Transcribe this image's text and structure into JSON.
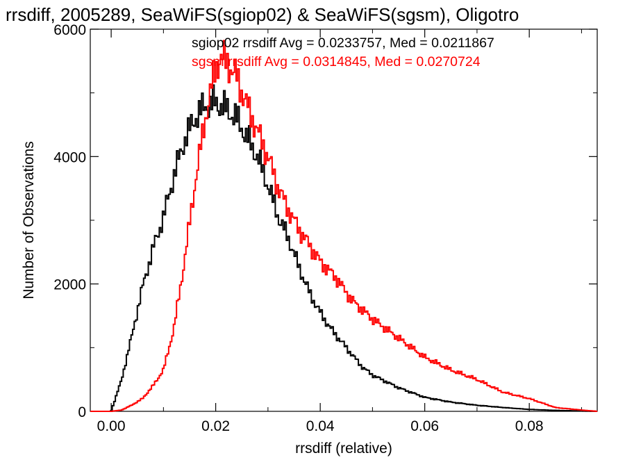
{
  "chart_data": {
    "type": "line",
    "step": true,
    "title": "rrsdiff, 2005289, SeaWiFS(sgiop02) & SeaWiFS(sgsm), Oligotro",
    "xlabel": "rrsdiff (relative)",
    "ylabel": "Number of Observations",
    "xlim": [
      -0.004,
      0.093
    ],
    "ylim": [
      0,
      6000
    ],
    "xticks": [
      0.0,
      0.02,
      0.04,
      0.06,
      0.08
    ],
    "xtick_labels": [
      "0.00",
      "0.02",
      "0.04",
      "0.06",
      "0.08"
    ],
    "yticks": [
      0,
      2000,
      4000,
      6000
    ],
    "ytick_labels": [
      "0",
      "2000",
      "4000",
      "6000"
    ],
    "grid": false,
    "annotations": [
      {
        "text": "sgiop02 rrsdiff Avg = 0.0233757, Med = 0.0211867",
        "color": "#000000"
      },
      {
        "text": "sgsm rrsdiff Avg = 0.0314845, Med = 0.0270724",
        "color": "#ff0000"
      }
    ],
    "series": [
      {
        "color": "#000000",
        "x": [
          -0.004,
          0.0,
          0.002,
          0.004,
          0.006,
          0.008,
          0.01,
          0.012,
          0.014,
          0.016,
          0.018,
          0.02,
          0.022,
          0.024,
          0.026,
          0.028,
          0.03,
          0.032,
          0.034,
          0.036,
          0.038,
          0.04,
          0.042,
          0.045,
          0.048,
          0.05,
          0.055,
          0.06,
          0.065,
          0.07,
          0.075,
          0.08,
          0.085,
          0.09,
          0.093
        ],
        "values": [
          0,
          0,
          500,
          1200,
          1950,
          2550,
          3050,
          3700,
          4250,
          4600,
          4800,
          4850,
          4750,
          4600,
          4300,
          4000,
          3550,
          3050,
          2700,
          2250,
          1850,
          1550,
          1300,
          1000,
          700,
          570,
          370,
          220,
          145,
          95,
          60,
          30,
          15,
          5,
          0
        ]
      },
      {
        "color": "#ff0000",
        "x": [
          -0.004,
          0.0,
          0.002,
          0.004,
          0.006,
          0.008,
          0.01,
          0.012,
          0.014,
          0.016,
          0.018,
          0.019,
          0.02,
          0.021,
          0.022,
          0.024,
          0.026,
          0.028,
          0.03,
          0.032,
          0.034,
          0.036,
          0.038,
          0.04,
          0.043,
          0.046,
          0.05,
          0.055,
          0.06,
          0.065,
          0.07,
          0.075,
          0.08,
          0.085,
          0.09,
          0.093
        ],
        "values": [
          0,
          0,
          20,
          100,
          200,
          400,
          650,
          1300,
          2350,
          3550,
          4600,
          5000,
          5400,
          5550,
          5500,
          5250,
          4800,
          4400,
          4000,
          3500,
          3150,
          2850,
          2600,
          2350,
          2100,
          1750,
          1450,
          1150,
          850,
          650,
          500,
          300,
          200,
          60,
          20,
          0
        ]
      }
    ]
  }
}
